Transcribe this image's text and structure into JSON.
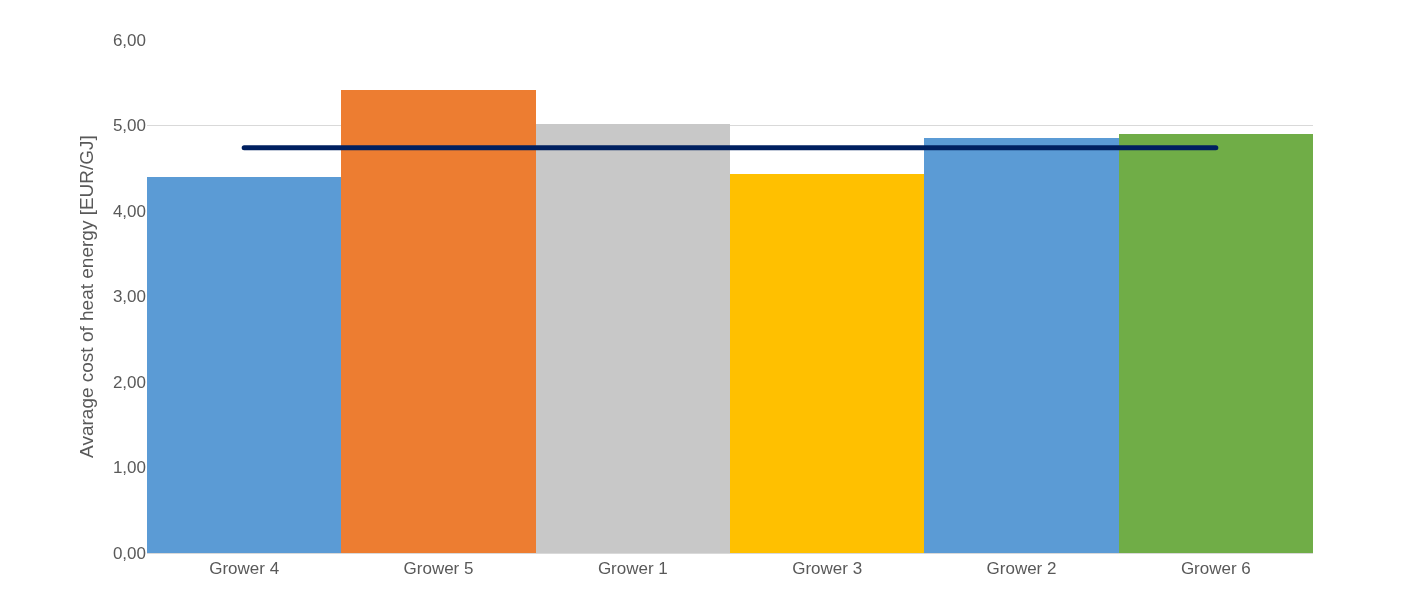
{
  "chart_data": {
    "type": "bar",
    "ylabel": "Avarage cost of heat energy [EUR/GJ]",
    "categories": [
      "Grower 4",
      "Grower 5",
      "Grower 1",
      "Grower 3",
      "Grower 2",
      "Grower 6"
    ],
    "series": [
      {
        "colors": [
          "#5b9bd5",
          "#ed7d31",
          "#c8c8c8",
          "#ffc000",
          "#5b9bd5",
          "#70ad47"
        ],
        "values": [
          4.4,
          5.41,
          5.02,
          4.43,
          4.85,
          4.9
        ]
      },
      {
        "type": "line",
        "color": "#002060",
        "values": [
          4.74,
          4.74,
          4.74,
          4.74,
          4.74,
          4.74
        ]
      }
    ],
    "ylim": [
      0,
      6
    ],
    "yticks": [
      {
        "value": 0,
        "label": "0,00"
      },
      {
        "value": 1,
        "label": "1,00"
      },
      {
        "value": 2,
        "label": "2,00"
      },
      {
        "value": 3,
        "label": "3,00"
      },
      {
        "value": 4,
        "label": "4,00"
      },
      {
        "value": 5,
        "label": "5,00"
      },
      {
        "value": 6,
        "label": "6,00"
      }
    ],
    "grid": "y",
    "marker": "none",
    "line_style": "solid"
  }
}
